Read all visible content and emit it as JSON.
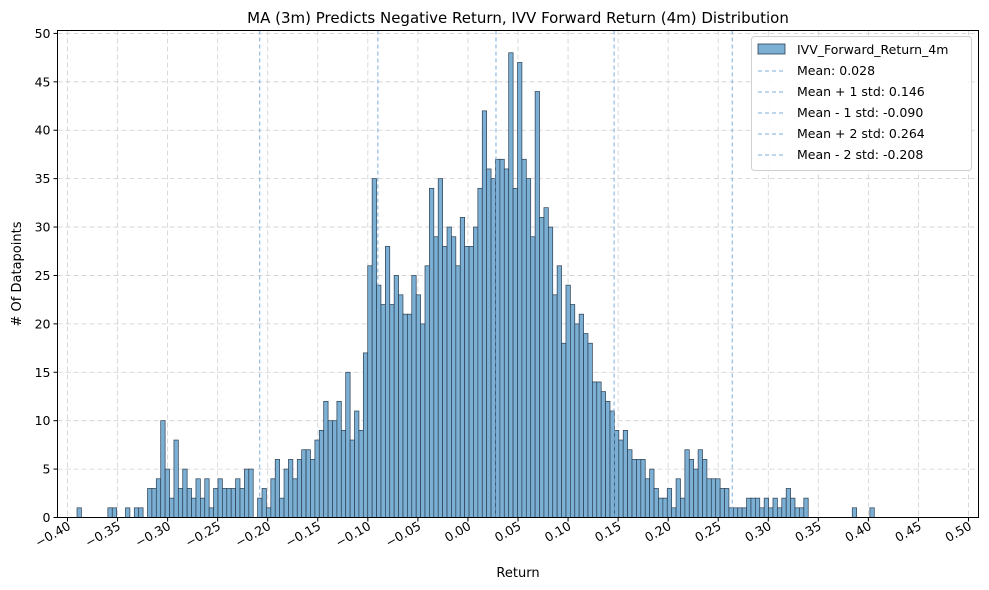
{
  "chart_data": {
    "type": "bar",
    "title": "MA (3m) Predicts Negative Return, IVV Forward Return (4m) Distribution",
    "xlabel": "Return",
    "ylabel": "# Of Datapoints",
    "xlim": [
      -0.41,
      0.51
    ],
    "ylim": [
      0,
      50.3
    ],
    "x_ticks": [
      -0.4,
      -0.35,
      -0.3,
      -0.25,
      -0.2,
      -0.15,
      -0.1,
      -0.05,
      0.0,
      0.05,
      0.1,
      0.15,
      0.2,
      0.25,
      0.3,
      0.35,
      0.4,
      0.45,
      0.5
    ],
    "x_tick_labels": [
      "−0.40",
      "−0.35",
      "−0.30",
      "−0.25",
      "−0.20",
      "−0.15",
      "−0.10",
      "−0.05",
      "0.00",
      "0.05",
      "0.10",
      "0.15",
      "0.20",
      "0.25",
      "0.30",
      "0.35",
      "0.40",
      "0.45",
      "0.50"
    ],
    "y_ticks": [
      0,
      5,
      10,
      15,
      20,
      25,
      30,
      35,
      40,
      45,
      50
    ],
    "y_tick_labels": [
      "0",
      "5",
      "10",
      "15",
      "20",
      "25",
      "30",
      "35",
      "40",
      "45",
      "50"
    ],
    "grid": true,
    "legend_position": "top-right",
    "bar_color": "#7bafd4",
    "bar_edge_color": "#2c3e50",
    "line_color": "#7aaedc",
    "bin_start": -0.3905,
    "bin_width": 0.0044,
    "counts": [
      1,
      0,
      0,
      0,
      0,
      0,
      0,
      1,
      1,
      0,
      0,
      1,
      0,
      1,
      1,
      0,
      3,
      3,
      4,
      10,
      5,
      2,
      8,
      3,
      5,
      3,
      2,
      4,
      2,
      4,
      1,
      3,
      4,
      3,
      3,
      3,
      4,
      3,
      5,
      5,
      0,
      2,
      3,
      1,
      4,
      6,
      2,
      5,
      6,
      4,
      6,
      7,
      7,
      6,
      8,
      9,
      12,
      10,
      10,
      12,
      9,
      15,
      8,
      11,
      9,
      17,
      26,
      35,
      24,
      22,
      28,
      22,
      25,
      23,
      21,
      21,
      25,
      23,
      20,
      26,
      34,
      29,
      35,
      28,
      30,
      29,
      26,
      31,
      28,
      28,
      30,
      34,
      42,
      36,
      35,
      37,
      37,
      36,
      48,
      34,
      47,
      37,
      35,
      29,
      44,
      31,
      32,
      30,
      23,
      26,
      18,
      24,
      22,
      20,
      21,
      19,
      18,
      14,
      14,
      13,
      12,
      11,
      9,
      8,
      9,
      7,
      6,
      6,
      6,
      4,
      5,
      3,
      2,
      2,
      3,
      1,
      4,
      2,
      7,
      6,
      5,
      7,
      6,
      4,
      4,
      4,
      3,
      3,
      1,
      1,
      1,
      1,
      2,
      2,
      2,
      1,
      2,
      1,
      2,
      1,
      2,
      3,
      2,
      1,
      1,
      2,
      0,
      0,
      0,
      0,
      0,
      0,
      0,
      0,
      0,
      0,
      1,
      0,
      0,
      0,
      1
    ],
    "series": [
      {
        "name": "IVV_Forward_Return_4m",
        "kind": "histogram"
      }
    ],
    "reference_lines": [
      {
        "label": "Mean: 0.028",
        "x": 0.028
      },
      {
        "label": "Mean + 1 std: 0.146",
        "x": 0.146
      },
      {
        "label": "Mean - 1 std: -0.090",
        "x": -0.09
      },
      {
        "label": "Mean + 2 std: 0.264",
        "x": 0.264
      },
      {
        "label": "Mean - 2 std: -0.208",
        "x": -0.208
      }
    ]
  }
}
